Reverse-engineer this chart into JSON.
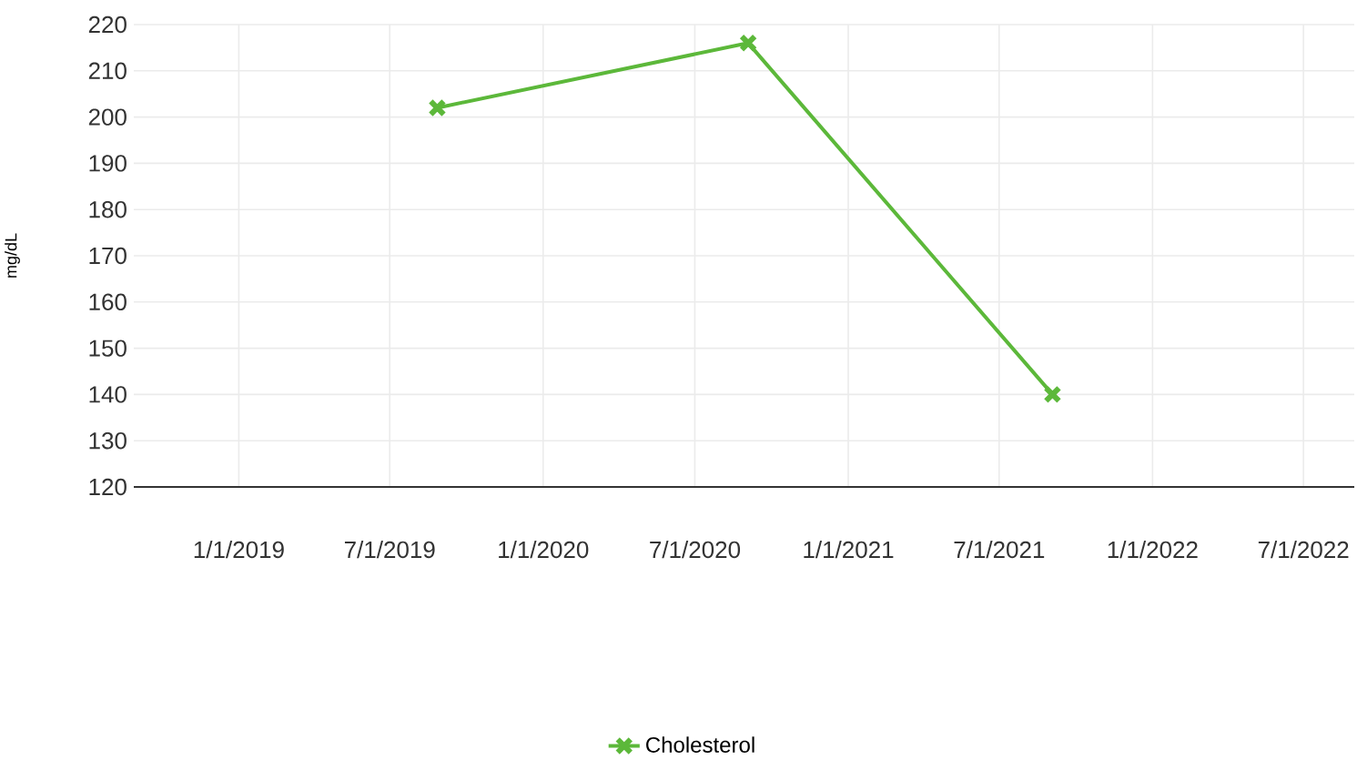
{
  "chart_data": {
    "type": "line",
    "ylabel": "mg/dL",
    "x": [
      "2019-08-27",
      "2020-09-03",
      "2021-09-03"
    ],
    "series": [
      {
        "name": "Cholesterol",
        "color": "#5cb83a",
        "values": [
          202,
          216,
          140
        ]
      }
    ],
    "xlim": [
      "2018-08-28",
      "2022-08-31"
    ],
    "xticks": [
      {
        "value": "2019-01-01",
        "label": "1/1/2019"
      },
      {
        "value": "2019-07-01",
        "label": "7/1/2019"
      },
      {
        "value": "2020-01-01",
        "label": "1/1/2020"
      },
      {
        "value": "2020-07-01",
        "label": "7/1/2020"
      },
      {
        "value": "2021-01-01",
        "label": "1/1/2021"
      },
      {
        "value": "2021-07-01",
        "label": "7/1/2021"
      },
      {
        "value": "2022-01-01",
        "label": "1/1/2022"
      },
      {
        "value": "2022-07-01",
        "label": "7/1/2022"
      }
    ],
    "ylim": [
      120,
      220
    ],
    "yticks": [
      120,
      130,
      140,
      150,
      160,
      170,
      180,
      190,
      200,
      210,
      220
    ],
    "grid": true,
    "legend": "bottom",
    "marker": "cross",
    "line_style": "solid"
  }
}
